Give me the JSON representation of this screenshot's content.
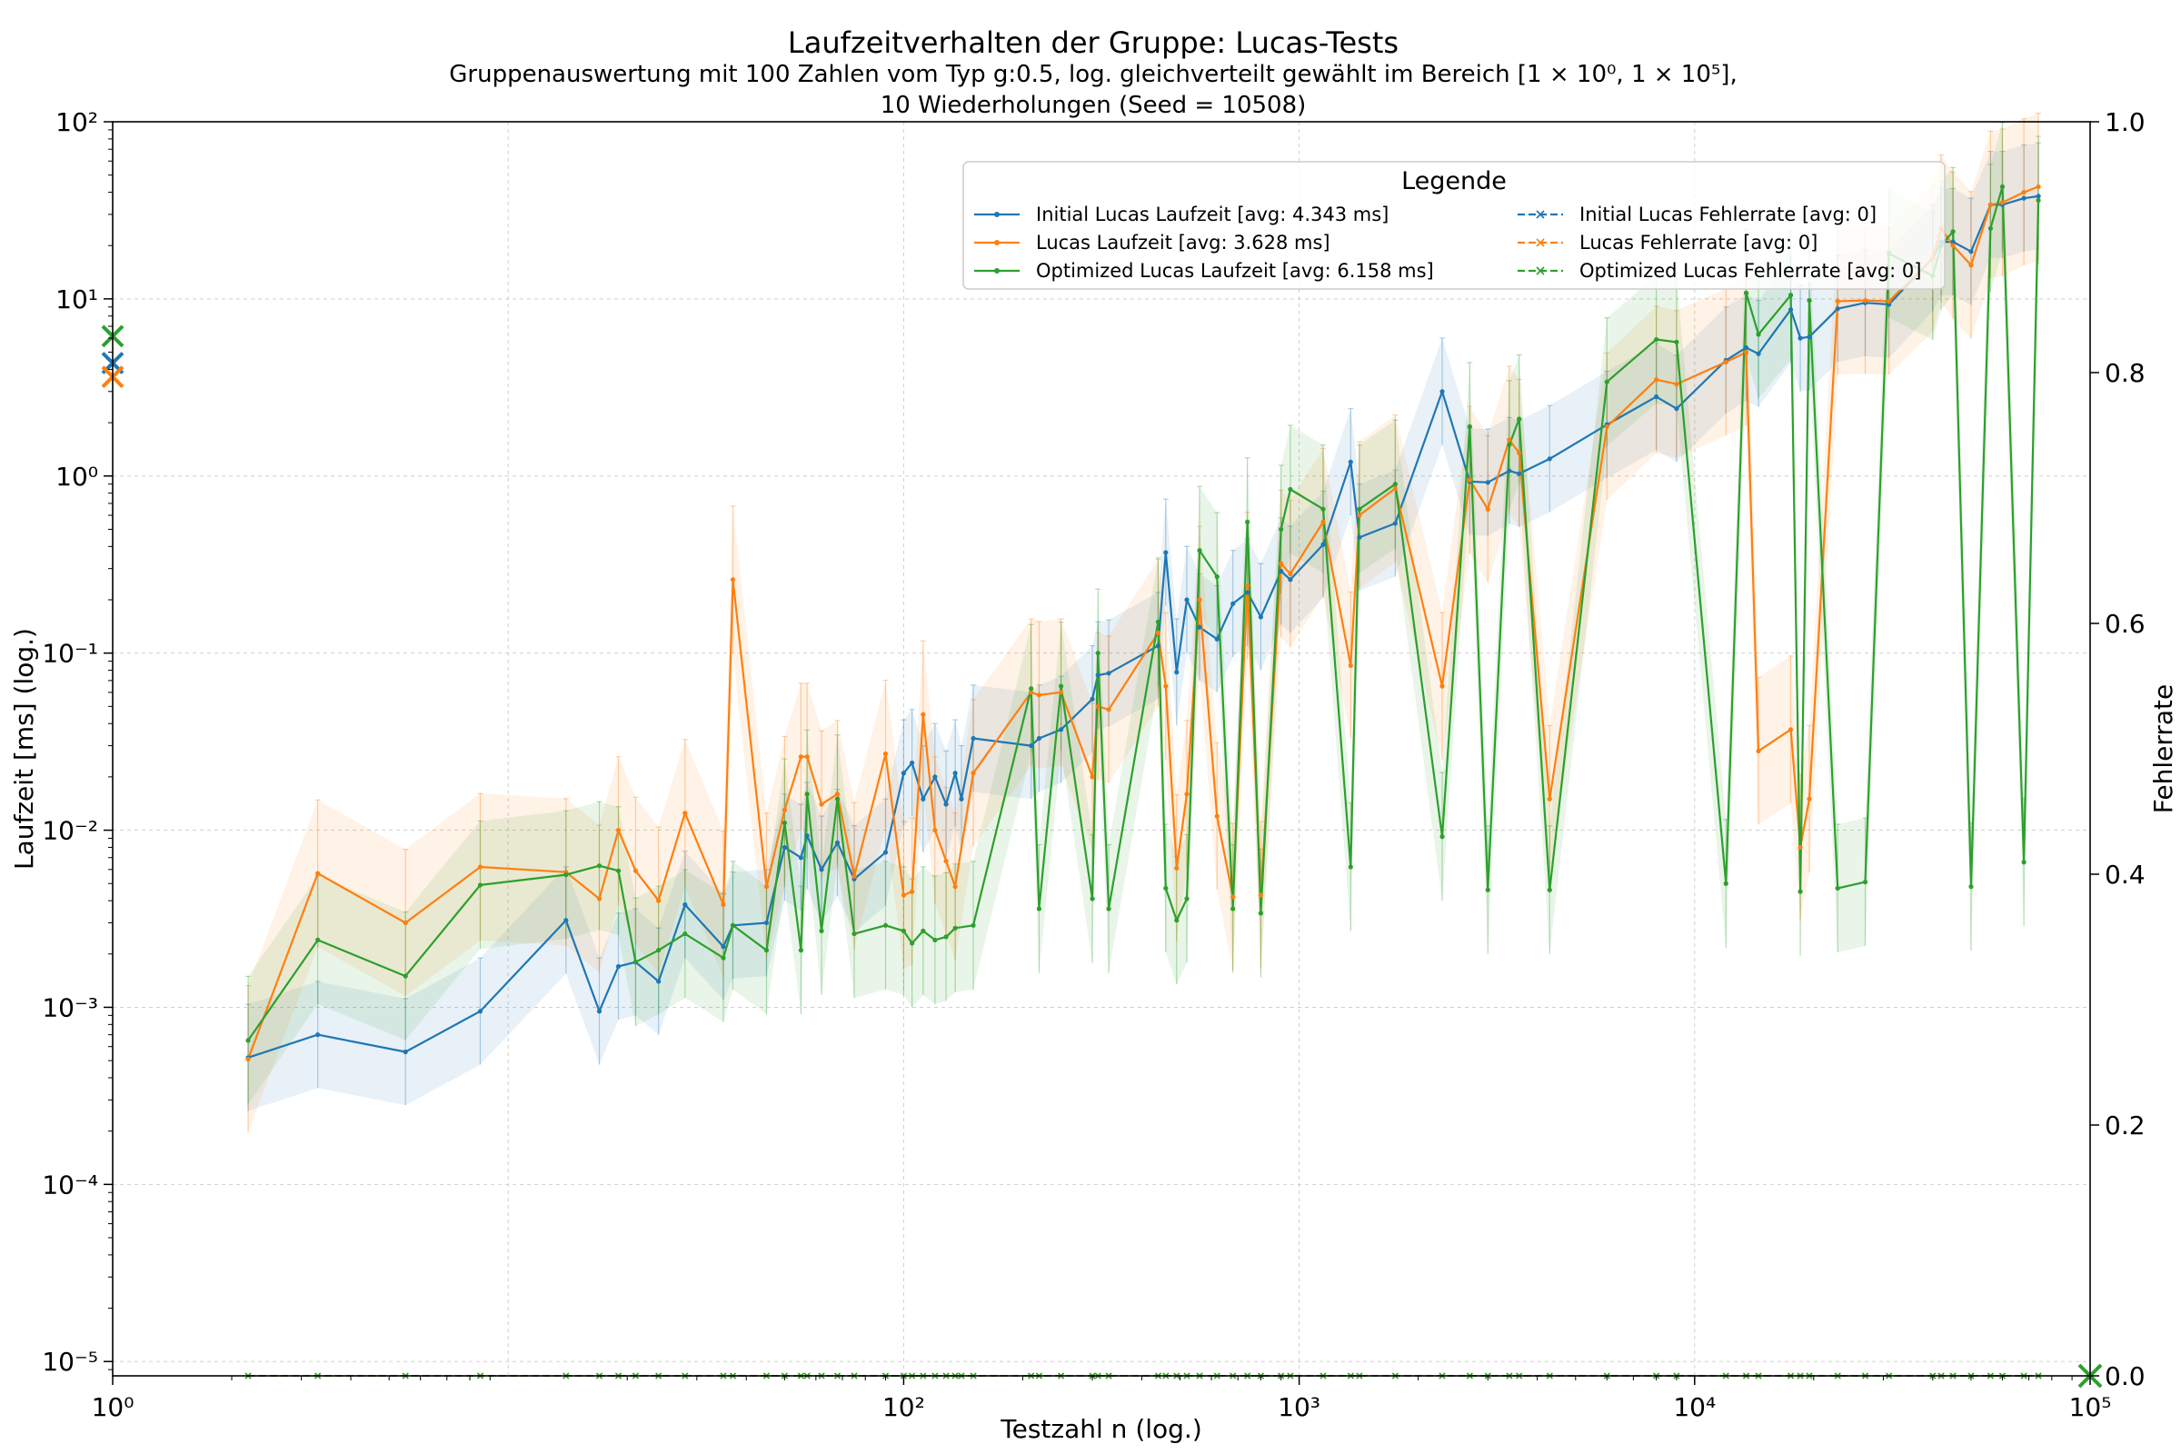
{
  "chart_data": {
    "type": "line",
    "title": "Laufzeitverhalten der Gruppe: Lucas-Tests",
    "subtitle_line1": "Gruppenauswertung mit 100 Zahlen vom Typ g:0.5, log. gleichverteilt gewählt im Bereich [1 × 10⁰, 1 × 10⁵],",
    "subtitle_line2": "10 Wiederholungen (Seed = 10508)",
    "xlabel": "Testzahl n (log.)",
    "ylabel": "Laufzeit [ms] (log.)",
    "y2label": "Fehlerrate",
    "xscale": "log",
    "yscale": "log",
    "xlim": [
      1,
      100000
    ],
    "ylim": [
      8.3e-06,
      100
    ],
    "y2lim": [
      0.0,
      1.0
    ],
    "grid": true,
    "legend_title": "Legende",
    "legend_position": "top-right",
    "x_ticks": [
      "10⁰",
      "10²",
      "10³",
      "10⁴",
      "10⁵"
    ],
    "y_ticks": [
      "10⁻⁵",
      "10⁻⁴",
      "10⁻³",
      "10⁻²",
      "10⁻¹",
      "10⁰",
      "10¹",
      "10²"
    ],
    "y2_ticks": [
      "0.0",
      "0.2",
      "0.4",
      "0.6",
      "0.8",
      "1.0"
    ],
    "colors": {
      "blue": "#1f77b4",
      "orange": "#ff7f0e",
      "green": "#2ca02c"
    },
    "series": [
      {
        "name": "Initial Lucas Laufzeit [avg: 4.343 ms]",
        "color": "#1f77b4",
        "avg": 4.343,
        "points": [
          [
            2.2,
            0.00052
          ],
          [
            3.3,
            0.0007
          ],
          [
            5.5,
            0.00056
          ],
          [
            8.5,
            0.00095
          ],
          [
            14,
            0.0031
          ],
          [
            17,
            0.00095
          ],
          [
            19,
            0.0017
          ],
          [
            21,
            0.0018
          ],
          [
            24,
            0.0014
          ],
          [
            28,
            0.0038
          ],
          [
            35,
            0.0022
          ],
          [
            37,
            0.0029
          ],
          [
            45,
            0.003
          ],
          [
            50,
            0.008
          ],
          [
            55,
            0.007
          ],
          [
            57,
            0.0093
          ],
          [
            62,
            0.006
          ],
          [
            68,
            0.0085
          ],
          [
            75,
            0.0053
          ],
          [
            90,
            0.0075
          ],
          [
            100,
            0.021
          ],
          [
            105,
            0.024
          ],
          [
            112,
            0.015
          ],
          [
            120,
            0.02
          ],
          [
            128,
            0.014
          ],
          [
            135,
            0.021
          ],
          [
            140,
            0.015
          ],
          [
            150,
            0.033
          ],
          [
            210,
            0.03
          ],
          [
            220,
            0.033
          ],
          [
            250,
            0.037
          ],
          [
            300,
            0.055
          ],
          [
            310,
            0.075
          ],
          [
            330,
            0.077
          ],
          [
            440,
            0.11
          ],
          [
            460,
            0.37
          ],
          [
            490,
            0.078
          ],
          [
            520,
            0.2
          ],
          [
            560,
            0.14
          ],
          [
            620,
            0.12
          ],
          [
            680,
            0.19
          ],
          [
            740,
            0.22
          ],
          [
            800,
            0.16
          ],
          [
            900,
            0.29
          ],
          [
            950,
            0.26
          ],
          [
            1150,
            0.41
          ],
          [
            1350,
            1.2
          ],
          [
            1420,
            0.45
          ],
          [
            1750,
            0.54
          ],
          [
            2300,
            3.0
          ],
          [
            2700,
            0.93
          ],
          [
            3000,
            0.92
          ],
          [
            3400,
            1.07
          ],
          [
            3600,
            1.03
          ],
          [
            4300,
            1.25
          ],
          [
            6000,
            1.95
          ],
          [
            8000,
            2.8
          ],
          [
            9000,
            2.4
          ],
          [
            12000,
            4.5
          ],
          [
            13500,
            5.3
          ],
          [
            14500,
            4.9
          ],
          [
            17500,
            8.7
          ],
          [
            18500,
            6.0
          ],
          [
            19500,
            6.1
          ],
          [
            23000,
            8.8
          ],
          [
            27000,
            9.5
          ],
          [
            31000,
            9.3
          ],
          [
            40000,
            17.0
          ],
          [
            42000,
            21.0
          ],
          [
            45000,
            21.0
          ],
          [
            50000,
            18.5
          ],
          [
            56000,
            34.0
          ],
          [
            60000,
            34.0
          ],
          [
            68000,
            37.0
          ],
          [
            74000,
            38.0
          ]
        ]
      },
      {
        "name": "Lucas Laufzeit [avg: 3.628 ms]",
        "color": "#ff7f0e",
        "avg": 3.628,
        "points": [
          [
            2.2,
            0.00051
          ],
          [
            3.3,
            0.0057
          ],
          [
            5.5,
            0.003
          ],
          [
            8.5,
            0.0062
          ],
          [
            14,
            0.0058
          ],
          [
            17,
            0.0041
          ],
          [
            19,
            0.01
          ],
          [
            21,
            0.0059
          ],
          [
            24,
            0.004
          ],
          [
            28,
            0.0125
          ],
          [
            35,
            0.0038
          ],
          [
            37,
            0.26
          ],
          [
            45,
            0.0048
          ],
          [
            50,
            0.013
          ],
          [
            55,
            0.026
          ],
          [
            57,
            0.026
          ],
          [
            62,
            0.014
          ],
          [
            68,
            0.016
          ],
          [
            75,
            0.0055
          ],
          [
            90,
            0.027
          ],
          [
            100,
            0.0043
          ],
          [
            105,
            0.0045
          ],
          [
            112,
            0.045
          ],
          [
            120,
            0.01
          ],
          [
            128,
            0.0067
          ],
          [
            135,
            0.0048
          ],
          [
            150,
            0.021
          ],
          [
            210,
            0.06
          ],
          [
            220,
            0.058
          ],
          [
            250,
            0.06
          ],
          [
            300,
            0.02
          ],
          [
            310,
            0.05
          ],
          [
            330,
            0.048
          ],
          [
            440,
            0.13
          ],
          [
            460,
            0.065
          ],
          [
            490,
            0.0061
          ],
          [
            520,
            0.016
          ],
          [
            560,
            0.2
          ],
          [
            620,
            0.012
          ],
          [
            680,
            0.0042
          ],
          [
            740,
            0.24
          ],
          [
            800,
            0.0043
          ],
          [
            900,
            0.32
          ],
          [
            950,
            0.28
          ],
          [
            1150,
            0.55
          ],
          [
            1350,
            0.085
          ],
          [
            1420,
            0.6
          ],
          [
            1750,
            0.85
          ],
          [
            2300,
            0.065
          ],
          [
            2700,
            0.95
          ],
          [
            3000,
            0.65
          ],
          [
            3400,
            1.6
          ],
          [
            3600,
            1.35
          ],
          [
            4300,
            0.015
          ],
          [
            6000,
            1.9
          ],
          [
            8000,
            3.5
          ],
          [
            9000,
            3.3
          ],
          [
            12000,
            4.4
          ],
          [
            13500,
            5.0
          ],
          [
            14500,
            0.028
          ],
          [
            17500,
            0.037
          ],
          [
            18500,
            0.008
          ],
          [
            19500,
            0.015
          ],
          [
            23000,
            9.7
          ],
          [
            27000,
            9.8
          ],
          [
            31000,
            9.7
          ],
          [
            40000,
            17.0
          ],
          [
            42000,
            25.0
          ],
          [
            45000,
            20.0
          ],
          [
            50000,
            15.5
          ],
          [
            56000,
            34.0
          ],
          [
            60000,
            35.0
          ],
          [
            68000,
            40.0
          ],
          [
            74000,
            43.0
          ]
        ]
      },
      {
        "name": "Optimized Lucas Laufzeit [avg: 6.158 ms]",
        "color": "#2ca02c",
        "avg": 6.158,
        "points": [
          [
            2.2,
            0.00065
          ],
          [
            3.3,
            0.0024
          ],
          [
            5.5,
            0.0015
          ],
          [
            8.5,
            0.0049
          ],
          [
            14,
            0.0056
          ],
          [
            17,
            0.0063
          ],
          [
            19,
            0.0059
          ],
          [
            21,
            0.0018
          ],
          [
            24,
            0.0021
          ],
          [
            28,
            0.0026
          ],
          [
            35,
            0.0019
          ],
          [
            37,
            0.0029
          ],
          [
            45,
            0.0021
          ],
          [
            50,
            0.011
          ],
          [
            55,
            0.0021
          ],
          [
            57,
            0.016
          ],
          [
            62,
            0.0027
          ],
          [
            68,
            0.015
          ],
          [
            75,
            0.0026
          ],
          [
            90,
            0.0029
          ],
          [
            100,
            0.0027
          ],
          [
            105,
            0.0023
          ],
          [
            112,
            0.0027
          ],
          [
            120,
            0.0024
          ],
          [
            128,
            0.0025
          ],
          [
            135,
            0.0028
          ],
          [
            150,
            0.0029
          ],
          [
            210,
            0.063
          ],
          [
            220,
            0.0036
          ],
          [
            250,
            0.065
          ],
          [
            300,
            0.0041
          ],
          [
            310,
            0.1
          ],
          [
            330,
            0.0036
          ],
          [
            440,
            0.15
          ],
          [
            460,
            0.0047
          ],
          [
            490,
            0.0031
          ],
          [
            520,
            0.0041
          ],
          [
            560,
            0.38
          ],
          [
            620,
            0.27
          ],
          [
            680,
            0.0036
          ],
          [
            740,
            0.55
          ],
          [
            800,
            0.0034
          ],
          [
            900,
            0.5
          ],
          [
            950,
            0.84
          ],
          [
            1150,
            0.65
          ],
          [
            1350,
            0.0062
          ],
          [
            1420,
            0.65
          ],
          [
            1750,
            0.9
          ],
          [
            2300,
            0.0092
          ],
          [
            2700,
            1.9
          ],
          [
            3000,
            0.0046
          ],
          [
            3400,
            1.5
          ],
          [
            3600,
            2.1
          ],
          [
            4300,
            0.0046
          ],
          [
            6000,
            3.4
          ],
          [
            8000,
            5.9
          ],
          [
            9000,
            5.7
          ],
          [
            12000,
            0.005
          ],
          [
            13500,
            10.8
          ],
          [
            14500,
            6.3
          ],
          [
            17500,
            10.5
          ],
          [
            18500,
            0.0045
          ],
          [
            19500,
            9.8
          ],
          [
            23000,
            0.0047
          ],
          [
            27000,
            0.0051
          ],
          [
            31000,
            18.0
          ],
          [
            40000,
            13.5
          ],
          [
            42000,
            20.0
          ],
          [
            45000,
            24.0
          ],
          [
            50000,
            0.0048
          ],
          [
            56000,
            25.0
          ],
          [
            60000,
            43.0
          ],
          [
            68000,
            0.0066
          ],
          [
            74000,
            36.0
          ]
        ]
      },
      {
        "name": "Initial Lucas Fehlerrate [avg: 0]",
        "color": "#1f77b4",
        "avg": 0,
        "style": "dashed",
        "constant": 0.0
      },
      {
        "name": "Lucas Fehlerrate [avg: 0]",
        "color": "#ff7f0e",
        "avg": 0,
        "style": "dashed",
        "constant": 0.0
      },
      {
        "name": "Optimized Lucas Fehlerrate [avg: 0]",
        "color": "#2ca02c",
        "avg": 0,
        "style": "dashed",
        "constant": 0.0
      }
    ],
    "avg_markers": [
      {
        "series": "Initial Lucas Laufzeit",
        "value": 4.343,
        "color": "#1f77b4"
      },
      {
        "series": "Lucas Laufzeit",
        "value": 3.628,
        "color": "#ff7f0e"
      },
      {
        "series": "Optimized Lucas Laufzeit",
        "value": 6.158,
        "color": "#2ca02c"
      }
    ]
  }
}
